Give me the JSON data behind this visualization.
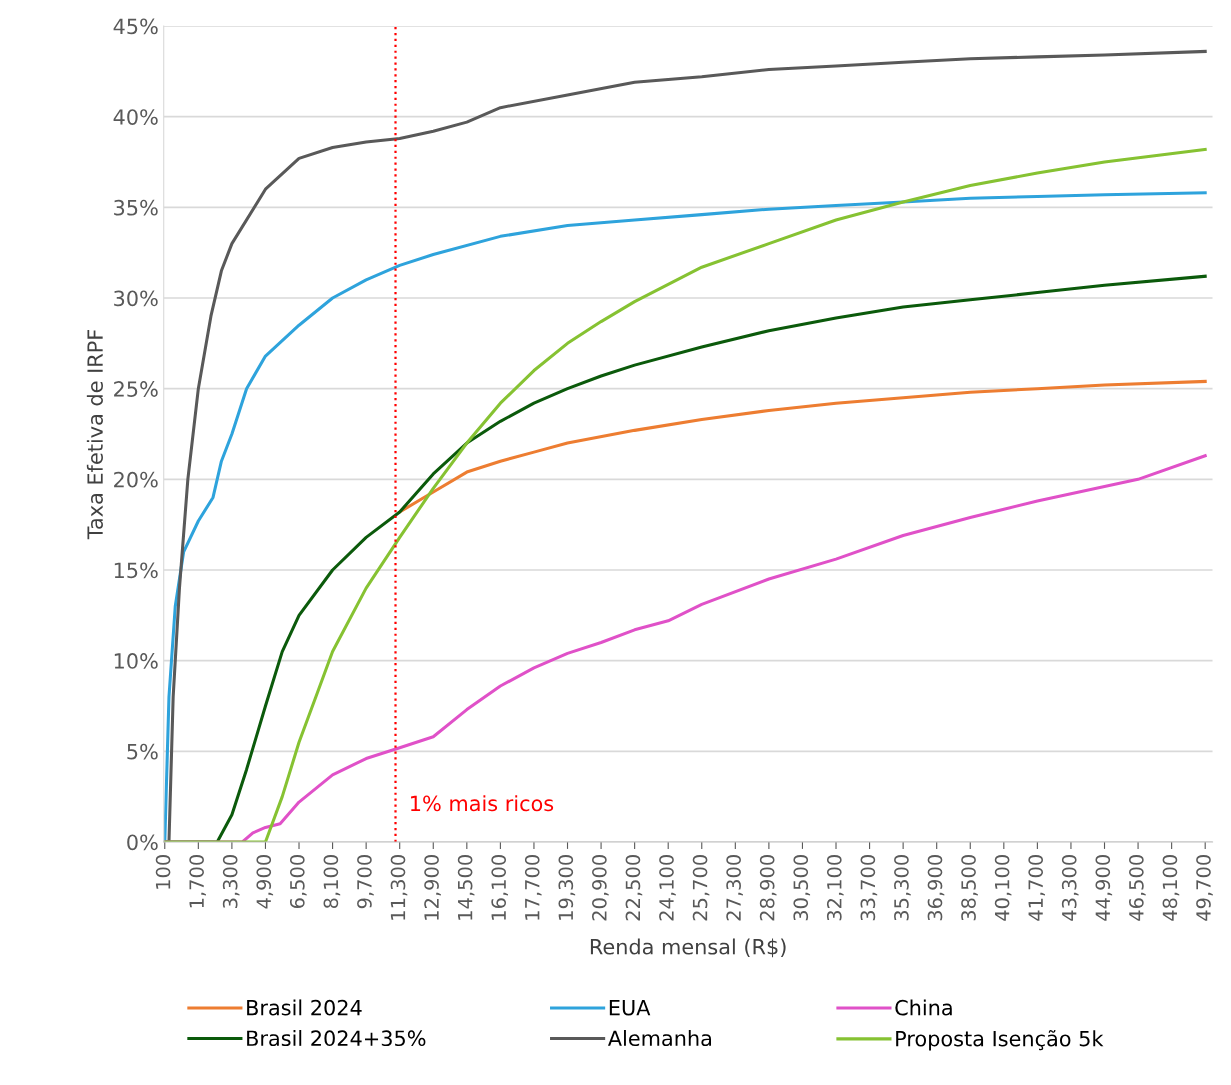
{
  "chart_data": {
    "type": "line",
    "xlabel": "Renda mensal (R$)",
    "ylabel": "Taxa Efetiva de IRPF",
    "xlim": [
      50,
      50050
    ],
    "xticks": [
      {
        "value": 100,
        "label": "100"
      },
      {
        "value": 1700,
        "label": "1,700"
      },
      {
        "value": 3300,
        "label": "3,300"
      },
      {
        "value": 4900,
        "label": "4,900"
      },
      {
        "value": 6500,
        "label": "6,500"
      },
      {
        "value": 8100,
        "label": "8,100"
      },
      {
        "value": 9700,
        "label": "9,700"
      },
      {
        "value": 11300,
        "label": "11,300"
      },
      {
        "value": 12900,
        "label": "12,900"
      },
      {
        "value": 14500,
        "label": "14,500"
      },
      {
        "value": 16100,
        "label": "16,100"
      },
      {
        "value": 17700,
        "label": "17,700"
      },
      {
        "value": 19300,
        "label": "19,300"
      },
      {
        "value": 20900,
        "label": "20,900"
      },
      {
        "value": 22500,
        "label": "22,500"
      },
      {
        "value": 24100,
        "label": "24,100"
      },
      {
        "value": 25700,
        "label": "25,700"
      },
      {
        "value": 27300,
        "label": "27,300"
      },
      {
        "value": 28900,
        "label": "28,900"
      },
      {
        "value": 30500,
        "label": "30,500"
      },
      {
        "value": 32100,
        "label": "32,100"
      },
      {
        "value": 33700,
        "label": "33,700"
      },
      {
        "value": 35300,
        "label": "35,300"
      },
      {
        "value": 36900,
        "label": "36,900"
      },
      {
        "value": 38500,
        "label": "38,500"
      },
      {
        "value": 40100,
        "label": "40,100"
      },
      {
        "value": 41700,
        "label": "41,700"
      },
      {
        "value": 43300,
        "label": "43,300"
      },
      {
        "value": 44900,
        "label": "44,900"
      },
      {
        "value": 46500,
        "label": "46,500"
      },
      {
        "value": 48100,
        "label": "48,100"
      },
      {
        "value": 49700,
        "label": "49,700"
      }
    ],
    "ylim": [
      0,
      45
    ],
    "yticks": [
      {
        "value": 0,
        "label": "0%"
      },
      {
        "value": 5,
        "label": "5%"
      },
      {
        "value": 10,
        "label": "10%"
      },
      {
        "value": 15,
        "label": "15%"
      },
      {
        "value": 20,
        "label": "20%"
      },
      {
        "value": 25,
        "label": "25%"
      },
      {
        "value": 30,
        "label": "30%"
      },
      {
        "value": 35,
        "label": "35%"
      },
      {
        "value": 40,
        "label": "40%"
      },
      {
        "value": 45,
        "label": "45%"
      }
    ],
    "grid": "y",
    "legend": "bottom",
    "marker": "none",
    "line_style": "solid",
    "ref_lines": [
      {
        "axis": "x",
        "value": 11100,
        "label": "1% mais ricos",
        "color": "#ff0000",
        "line_style": "dotted"
      }
    ],
    "series": [
      {
        "name": "Brasil 2024",
        "color": "#ed7d31",
        "x": [
          11300,
          12900,
          14500,
          16100,
          17700,
          19300,
          22500,
          25700,
          28900,
          32100,
          35300,
          38500,
          41700,
          44900,
          49700
        ],
        "values": [
          18.2,
          19.3,
          20.4,
          21,
          21.5,
          22,
          22.7,
          23.3,
          23.8,
          24.2,
          24.5,
          24.8,
          25,
          25.2,
          25.4
        ]
      },
      {
        "name": "Brasil 2024+35%",
        "color": "#0b5a0b",
        "x": [
          100,
          2600,
          3300,
          4000,
          4900,
          5700,
          6500,
          8100,
          9700,
          11300,
          12900,
          14500,
          16100,
          17700,
          19300,
          20900,
          22500,
          25700,
          28900,
          32100,
          35300,
          38500,
          41700,
          44900,
          49700
        ],
        "values": [
          0,
          0,
          1.5,
          4,
          7.5,
          10.5,
          12.5,
          15,
          16.8,
          18.2,
          20.3,
          22,
          23.2,
          24.2,
          25,
          25.7,
          26.3,
          27.3,
          28.2,
          28.9,
          29.5,
          29.9,
          30.3,
          30.7,
          31.2
        ]
      },
      {
        "name": "EUA",
        "color": "#2ea3dc",
        "x": [
          100,
          300,
          600,
          1000,
          1700,
          2400,
          2800,
          3300,
          4000,
          4900,
          6500,
          8100,
          9700,
          11300,
          12900,
          16100,
          19300,
          22500,
          25700,
          28900,
          32100,
          35300,
          38500,
          41700,
          44900,
          49700
        ],
        "values": [
          0,
          8,
          13,
          16,
          17.7,
          19,
          21,
          22.5,
          25,
          26.8,
          28.5,
          30,
          31,
          31.8,
          32.4,
          33.4,
          34,
          34.3,
          34.6,
          34.9,
          35.1,
          35.3,
          35.5,
          35.6,
          35.7,
          35.8
        ]
      },
      {
        "name": "Alemanha",
        "color": "#595959",
        "x": [
          100,
          300,
          500,
          800,
          1200,
          1700,
          2300,
          2800,
          3300,
          4900,
          6500,
          8100,
          9700,
          11300,
          12900,
          14500,
          16100,
          19300,
          22500,
          25700,
          28900,
          32100,
          35300,
          38500,
          41700,
          44900,
          49700
        ],
        "values": [
          0,
          0,
          8,
          14,
          20,
          25,
          29,
          31.5,
          33,
          36,
          37.7,
          38.3,
          38.6,
          38.8,
          39.2,
          39.7,
          40.5,
          41.2,
          41.9,
          42.2,
          42.6,
          42.8,
          43,
          43.2,
          43.3,
          43.4,
          43.6
        ]
      },
      {
        "name": "China",
        "color": "#e051c8",
        "x": [
          100,
          3800,
          4300,
          4900,
          5600,
          6500,
          8100,
          9700,
          11300,
          12900,
          14500,
          16100,
          17700,
          19300,
          20900,
          22500,
          24100,
          25700,
          28900,
          32100,
          35300,
          38500,
          41700,
          44900,
          46500,
          49700
        ],
        "values": [
          0,
          0,
          0.5,
          0.8,
          1,
          2.2,
          3.7,
          4.6,
          5.2,
          5.8,
          7.3,
          8.6,
          9.6,
          10.4,
          11,
          11.7,
          12.2,
          13.1,
          14.5,
          15.6,
          16.9,
          17.9,
          18.8,
          19.6,
          20,
          21.3
        ]
      },
      {
        "name": "Proposta Isenção 5k",
        "color": "#86c232",
        "x": [
          100,
          4900,
          5700,
          6500,
          7300,
          8100,
          9700,
          11300,
          12900,
          14500,
          16100,
          17700,
          19300,
          20900,
          22500,
          25700,
          28900,
          32100,
          35300,
          38500,
          41700,
          44900,
          49700
        ],
        "values": [
          0,
          0,
          2.5,
          5.5,
          8,
          10.5,
          14,
          16.8,
          19.5,
          22,
          24.2,
          26,
          27.5,
          28.7,
          29.8,
          31.7,
          33,
          34.3,
          35.3,
          36.2,
          36.9,
          37.5,
          38.2
        ]
      }
    ]
  }
}
